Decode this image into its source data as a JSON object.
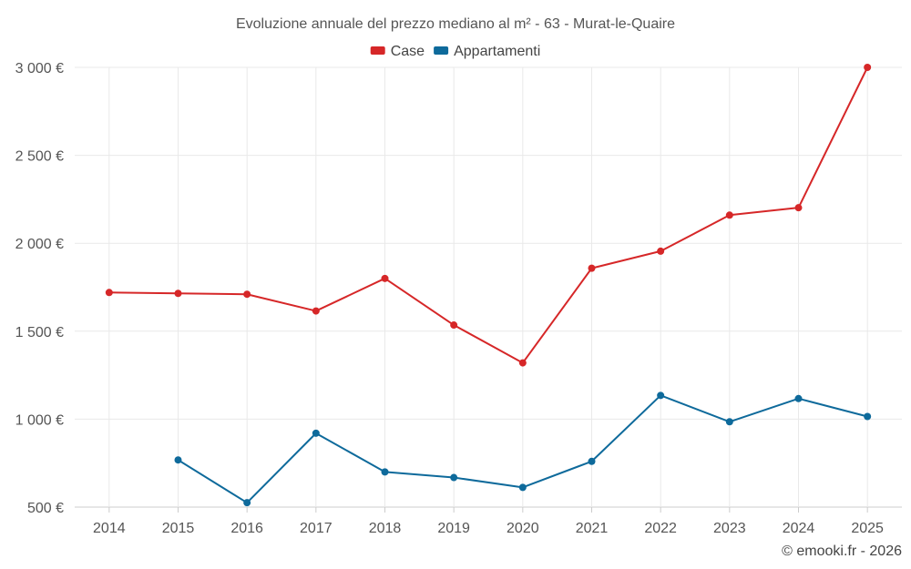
{
  "chart_data": {
    "type": "line",
    "title": "Evoluzione annuale del prezzo mediano al m² - 63 - Murat-le-Quaire",
    "categories": [
      "2014",
      "2015",
      "2016",
      "2017",
      "2018",
      "2019",
      "2020",
      "2021",
      "2022",
      "2023",
      "2024",
      "2025"
    ],
    "series": [
      {
        "name": "Case",
        "color": "#d62728",
        "values": [
          1720,
          1715,
          1710,
          1615,
          1800,
          1535,
          1320,
          1858,
          1955,
          2160,
          2202,
          3000
        ]
      },
      {
        "name": "Appartamenti",
        "color": "#0e6a9b",
        "values": [
          null,
          768,
          525,
          920,
          700,
          668,
          612,
          760,
          1135,
          985,
          1117,
          1015
        ]
      }
    ],
    "ylim": [
      500,
      3000
    ],
    "yticks": [
      500,
      1000,
      1500,
      2000,
      2500,
      3000
    ],
    "ytick_labels": [
      "500 €",
      "1 000 €",
      "1 500 €",
      "2 000 €",
      "2 500 €",
      "3 000 €"
    ],
    "xlabel": "",
    "ylabel": "",
    "grid": true,
    "legend_position": "top-center"
  },
  "credit": "© emooki.fr - 2026"
}
